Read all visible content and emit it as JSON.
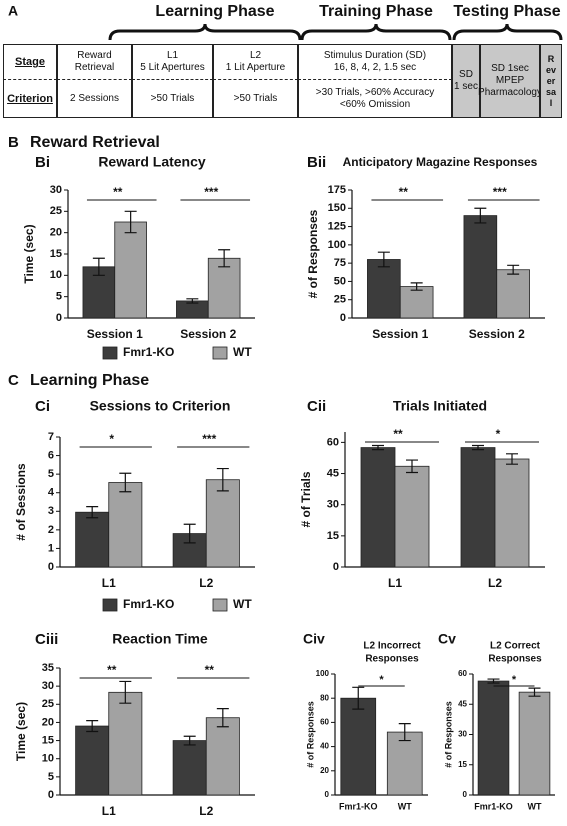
{
  "header": {
    "label": "A",
    "phases": [
      "Learning Phase",
      "Training Phase",
      "Testing Phase"
    ]
  },
  "table": {
    "rows": [
      {
        "label": "Stage",
        "cells": [
          [
            "Reward",
            "Retrieval"
          ],
          [
            "L1",
            "5 Lit Apertures"
          ],
          [
            "L2",
            "1 Lit Aperture"
          ],
          [
            "Stimulus Duration (SD)",
            "16, 8, 4, 2, 1.5 sec"
          ]
        ]
      },
      {
        "label": "Criterion",
        "cells": [
          [
            "2 Sessions"
          ],
          [
            ">50 Trials"
          ],
          [
            ">50 Trials"
          ],
          [
            ">30 Trials, >60% Accuracy",
            "<60% Omission"
          ]
        ]
      }
    ],
    "testing": [
      [
        "SD",
        "1 sec"
      ],
      [
        "SD 1sec",
        "MPEP",
        "Pharmacology"
      ],
      [
        "Reversal"
      ]
    ]
  },
  "sections": [
    {
      "label": "B",
      "title": "Reward Retrieval"
    },
    {
      "label": "C",
      "title": "Learning Phase"
    }
  ],
  "chart_data": [
    {
      "type": "bar",
      "panel": "Bi",
      "title": "Reward Latency",
      "ylabel": "Time (sec)",
      "categories": [
        "Session 1",
        "Session 2"
      ],
      "series": [
        {
          "name": "Fmr1-KO",
          "color": "#3c3c3c",
          "values": [
            12,
            4
          ],
          "errors": [
            2,
            0.5
          ]
        },
        {
          "name": "WT",
          "color": "#a2a2a2",
          "values": [
            22.5,
            14
          ],
          "errors": [
            2.5,
            2
          ]
        }
      ],
      "significance": [
        "**",
        "***"
      ],
      "ylim": [
        0,
        30
      ],
      "yticks": [
        0,
        5,
        10,
        15,
        20,
        25,
        30
      ]
    },
    {
      "type": "bar",
      "panel": "Bii",
      "title": "Anticipatory Magazine Responses",
      "ylabel": "# of Responses",
      "categories": [
        "Session 1",
        "Session 2"
      ],
      "series": [
        {
          "name": "Fmr1-KO",
          "color": "#3c3c3c",
          "values": [
            80,
            140
          ],
          "errors": [
            10,
            10
          ]
        },
        {
          "name": "WT",
          "color": "#a2a2a2",
          "values": [
            43,
            66
          ],
          "errors": [
            5,
            6
          ]
        }
      ],
      "significance": [
        "**",
        "***"
      ],
      "ylim": [
        0,
        175
      ],
      "yticks": [
        0,
        25,
        50,
        75,
        100,
        125,
        150,
        175
      ]
    },
    {
      "type": "bar",
      "panel": "Ci",
      "title": "Sessions to Criterion",
      "ylabel": "# of Sessions",
      "categories": [
        "L1",
        "L2"
      ],
      "series": [
        {
          "name": "Fmr1-KO",
          "color": "#3c3c3c",
          "values": [
            2.95,
            1.8
          ],
          "errors": [
            0.3,
            0.5
          ]
        },
        {
          "name": "WT",
          "color": "#a2a2a2",
          "values": [
            4.55,
            4.7
          ],
          "errors": [
            0.5,
            0.6
          ]
        }
      ],
      "significance": [
        "*",
        "***"
      ],
      "ylim": [
        0,
        7
      ],
      "yticks": [
        0,
        1,
        2,
        3,
        4,
        5,
        6,
        7
      ]
    },
    {
      "type": "bar",
      "panel": "Cii",
      "title": "Trials Initiated",
      "ylabel": "# of Trials",
      "categories": [
        "L1",
        "L2"
      ],
      "series": [
        {
          "name": "Fmr1-KO",
          "color": "#3c3c3c",
          "values": [
            57.5,
            57.5
          ],
          "errors": [
            1,
            1
          ]
        },
        {
          "name": "WT",
          "color": "#a2a2a2",
          "values": [
            48.5,
            52
          ],
          "errors": [
            3,
            2.5
          ]
        }
      ],
      "significance": [
        "**",
        "*"
      ],
      "ylim": [
        0,
        65
      ],
      "yticks": [
        0,
        15,
        30,
        45,
        60
      ]
    },
    {
      "type": "bar",
      "panel": "Ciii",
      "title": "Reaction Time",
      "ylabel": "Time (sec)",
      "categories": [
        "L1",
        "L2"
      ],
      "series": [
        {
          "name": "Fmr1-KO",
          "color": "#3c3c3c",
          "values": [
            19,
            15
          ],
          "errors": [
            1.5,
            1.2
          ]
        },
        {
          "name": "WT",
          "color": "#a2a2a2",
          "values": [
            28.3,
            21.3
          ],
          "errors": [
            3,
            2.5
          ]
        }
      ],
      "significance": [
        "**",
        "**"
      ],
      "ylim": [
        0,
        35
      ],
      "yticks": [
        0,
        5,
        10,
        15,
        20,
        25,
        30,
        35
      ]
    },
    {
      "type": "bar",
      "panel": "Civ",
      "title": [
        "L2 Incorrect",
        "Responses"
      ],
      "ylabel": "# of Responses",
      "categories": [
        "Fmr1-KO",
        "WT"
      ],
      "values": [
        80,
        52
      ],
      "errors": [
        9,
        7
      ],
      "colors": [
        "#3c3c3c",
        "#a2a2a2"
      ],
      "significance": [
        "*"
      ],
      "ylim": [
        0,
        100
      ],
      "yticks": [
        0,
        20,
        40,
        60,
        80,
        100
      ]
    },
    {
      "type": "bar",
      "panel": "Cv",
      "title": [
        "L2 Correct",
        "Responses"
      ],
      "ylabel": "# of Responses",
      "categories": [
        "Fmr1-KO",
        "WT"
      ],
      "values": [
        56.5,
        51
      ],
      "errors": [
        1,
        2
      ],
      "colors": [
        "#3c3c3c",
        "#a2a2a2"
      ],
      "significance": [
        "*"
      ],
      "ylim": [
        0,
        60
      ],
      "yticks": [
        0,
        15,
        30,
        45,
        60
      ]
    }
  ]
}
